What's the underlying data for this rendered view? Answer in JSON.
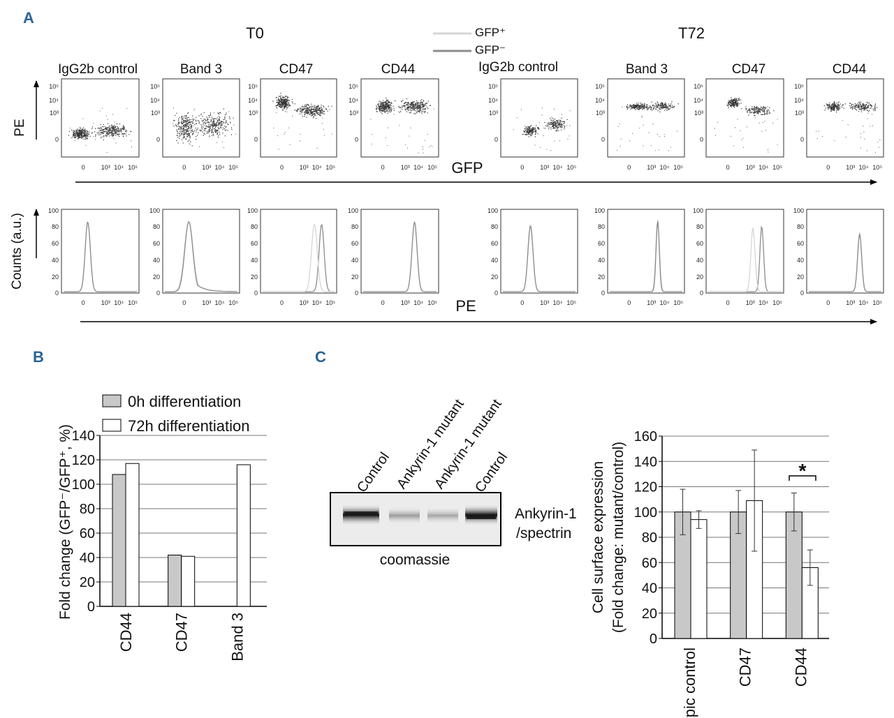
{
  "panel_labels": {
    "a": "A",
    "b": "B",
    "c": "C"
  },
  "panel_a": {
    "time_labels": [
      "T0",
      "T72"
    ],
    "legend": {
      "gfp_pos": "GFP⁺",
      "gfp_neg": "GFP⁻",
      "color_pos": "#d6d6d6",
      "color_neg": "#8c8c8c"
    },
    "stains": [
      "IgG2b control",
      "Band 3",
      "CD47",
      "CD44",
      "IgG2b control",
      "Band 3",
      "CD47",
      "CD44"
    ],
    "scatter": {
      "y_axis_label": "PE",
      "x_axis_label": "GFP",
      "y_ticks": [
        "10⁵",
        "10⁴",
        "10³",
        "0"
      ],
      "x_ticks": [
        "0",
        "10³",
        "10⁴",
        "10⁵"
      ]
    },
    "histogram": {
      "y_axis_label": "Counts (a.u.)",
      "x_axis_label": "PE",
      "y_ticks": [
        "100",
        "80",
        "60",
        "40",
        "20",
        "0"
      ],
      "x_ticks": [
        "0",
        "10³",
        "10⁴",
        "10⁵"
      ]
    }
  },
  "panel_c_blot": {
    "lanes": [
      "Control",
      "Ankyrin-1 mutant",
      "Ankyrin-1 mutant",
      "Control"
    ],
    "band_label_line1": "Ankyrin-1",
    "band_label_line2": "/spectrin",
    "stain_label": "coomassie"
  },
  "chart_data": [
    {
      "type": "bar",
      "panel": "B",
      "categories": [
        "CD44",
        "CD47",
        "Band 3"
      ],
      "series": [
        {
          "name": "0h differentiation",
          "values": [
            108,
            42,
            null
          ],
          "color": "#c8c8c8"
        },
        {
          "name": "72h differentiation",
          "values": [
            117,
            41,
            116
          ],
          "color": "#ffffff"
        }
      ],
      "ylabel": "Fold change (GFP⁻/GFP⁺, %)",
      "ylim": [
        0,
        140
      ],
      "yticks": [
        0,
        20,
        40,
        60,
        80,
        100,
        120,
        140
      ],
      "grid": true,
      "legend_position": "top"
    },
    {
      "type": "bar",
      "panel": "C",
      "categories": [
        "Isotypic control",
        "CD47",
        "CD44"
      ],
      "series": [
        {
          "name": "Control",
          "values": [
            100,
            100,
            100
          ],
          "errors": [
            18,
            17,
            15
          ],
          "color": "#c8c8c8"
        },
        {
          "name": "Ankyrin-1 mutant",
          "values": [
            94,
            109,
            56
          ],
          "errors": [
            7,
            40,
            14
          ],
          "color": "#ffffff"
        }
      ],
      "ylabel_line1": "Cell surface expression",
      "ylabel_line2": "(Fold change: mutant/control)",
      "ylim": [
        0,
        160
      ],
      "yticks": [
        0,
        20,
        40,
        60,
        80,
        100,
        120,
        140,
        160
      ],
      "grid": true,
      "annotation": "*"
    }
  ]
}
